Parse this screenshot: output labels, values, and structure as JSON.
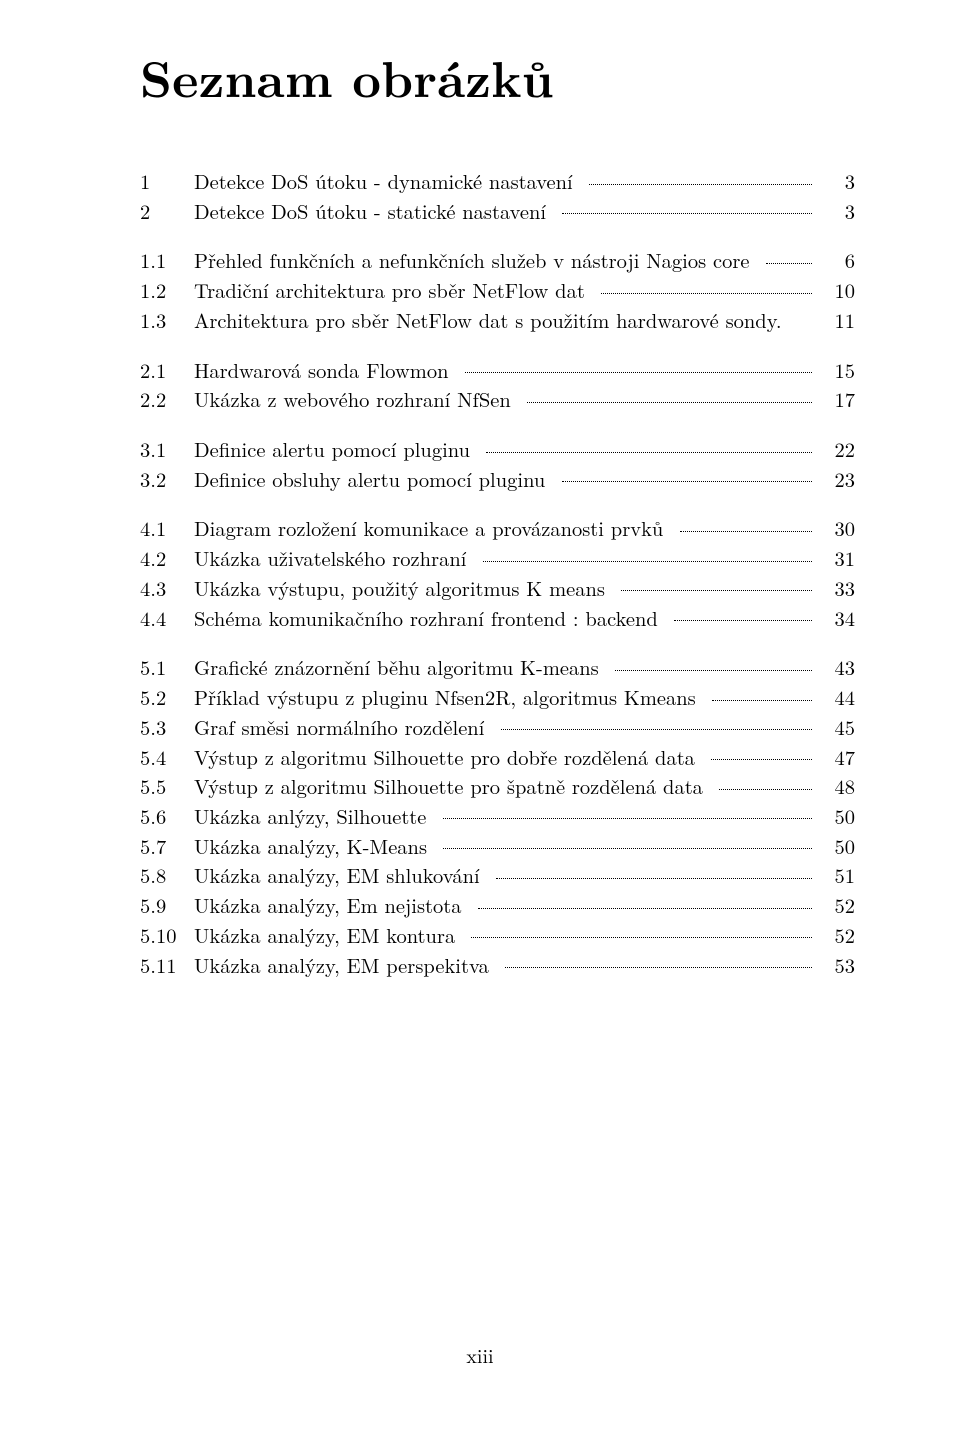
{
  "title": "Seznam obrázků",
  "footer": "xiii",
  "groups": [
    {
      "entries": [
        {
          "num": "1",
          "text": "Detekce DoS útoku - dynamické nastavení",
          "page": "3"
        },
        {
          "num": "2",
          "text": "Detekce DoS útoku - statické nastavení",
          "page": "3"
        }
      ]
    },
    {
      "entries": [
        {
          "num": "1.1",
          "text": "Přehled funkčních a nefunkčních služeb v nástroji Nagios core",
          "page": "6"
        },
        {
          "num": "1.2",
          "text": "Tradiční architektura pro sběr NetFlow dat",
          "page": "10"
        },
        {
          "num": "1.3",
          "text": "Architektura pro sběr NetFlow dat s použitím hardwarové sondy.",
          "page": "11",
          "noleaders": true
        }
      ]
    },
    {
      "entries": [
        {
          "num": "2.1",
          "text": "Hardwarová sonda Flowmon",
          "page": "15"
        },
        {
          "num": "2.2",
          "text": "Ukázka z webového rozhraní NfSen",
          "page": "17"
        }
      ]
    },
    {
      "entries": [
        {
          "num": "3.1",
          "text": "Definice alertu pomocí pluginu",
          "page": "22"
        },
        {
          "num": "3.2",
          "text": "Definice obsluhy alertu pomocí pluginu",
          "page": "23"
        }
      ]
    },
    {
      "entries": [
        {
          "num": "4.1",
          "text": "Diagram rozložení komunikace a provázanosti prvků",
          "page": "30"
        },
        {
          "num": "4.2",
          "text": "Ukázka uživatelského rozhraní",
          "page": "31"
        },
        {
          "num": "4.3",
          "text": "Ukázka výstupu, použitý algoritmus K means",
          "page": "33"
        },
        {
          "num": "4.4",
          "text": "Schéma komunikačního rozhraní frontend : backend",
          "page": "34"
        }
      ]
    },
    {
      "entries": [
        {
          "num": "5.1",
          "text": "Grafické znázornění běhu algoritmu K-means",
          "page": "43"
        },
        {
          "num": "5.2",
          "text": "Příklad výstupu z pluginu Nfsen2R, algoritmus Kmeans",
          "page": "44"
        },
        {
          "num": "5.3",
          "text": "Graf směsi normálního rozdělení",
          "page": "45"
        },
        {
          "num": "5.4",
          "text": "Výstup z algoritmu Silhouette pro dobře rozdělená data",
          "page": "47"
        },
        {
          "num": "5.5",
          "text": "Výstup z algoritmu Silhouette pro špatně rozdělená data",
          "page": "48"
        },
        {
          "num": "5.6",
          "text": "Ukázka anlýzy, Silhouette",
          "page": "50"
        },
        {
          "num": "5.7",
          "text": "Ukázka analýzy, K-Means",
          "page": "50"
        },
        {
          "num": "5.8",
          "text": "Ukázka analýzy, EM shlukování",
          "page": "51"
        },
        {
          "num": "5.9",
          "text": "Ukázka analýzy, Em nejistota",
          "page": "52"
        },
        {
          "num": "5.10",
          "text": "Ukázka analýzy, EM kontura",
          "page": "52"
        },
        {
          "num": "5.11",
          "text": "Ukázka analýzy, EM perspekitva",
          "page": "53"
        }
      ]
    }
  ]
}
